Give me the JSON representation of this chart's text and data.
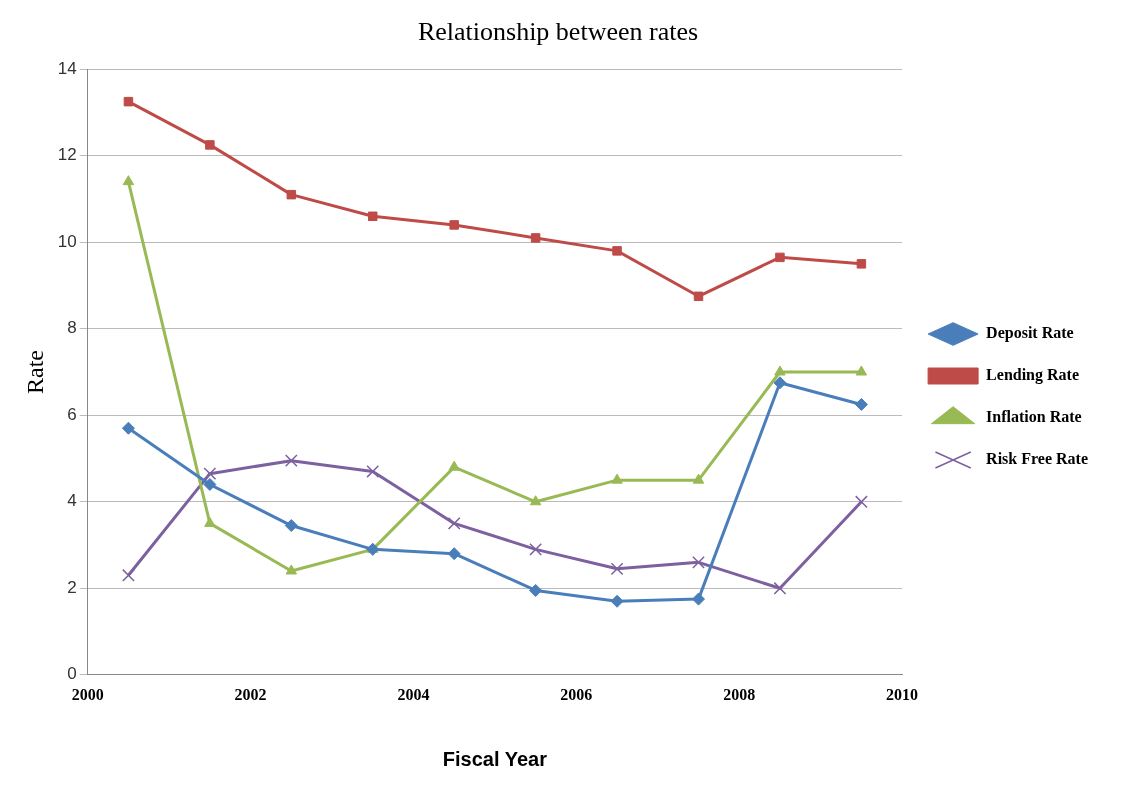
{
  "chart_data": {
    "type": "line",
    "title": "Relationship between rates",
    "xlabel": "Fiscal Year",
    "ylabel": "Rate",
    "x": [
      2000.5,
      2001.5,
      2002.5,
      2003.5,
      2004.5,
      2005.5,
      2006.5,
      2007.5,
      2008.5,
      2009.5
    ],
    "xlim": [
      2000,
      2010
    ],
    "xticks": [
      2000,
      2002,
      2004,
      2006,
      2008,
      2010
    ],
    "ylim": [
      0,
      14
    ],
    "yticks": [
      0,
      2,
      4,
      6,
      8,
      10,
      12,
      14
    ],
    "grid": "y",
    "legend": "right",
    "series": [
      {
        "name": "Deposit Rate",
        "color": "#4a7ebb",
        "marker": "diamond",
        "values": [
          5.7,
          4.4,
          3.45,
          2.9,
          2.8,
          1.95,
          1.7,
          1.75,
          6.75,
          6.25
        ]
      },
      {
        "name": "Lending Rate",
        "color": "#be4b48",
        "marker": "square",
        "values": [
          13.25,
          12.25,
          11.1,
          10.6,
          10.4,
          10.1,
          9.8,
          8.75,
          9.65,
          9.5
        ]
      },
      {
        "name": "Inflation Rate",
        "color": "#98b954",
        "marker": "triangle",
        "values": [
          11.4,
          3.5,
          2.4,
          2.9,
          4.8,
          4.0,
          4.5,
          4.5,
          7.0,
          7.0
        ]
      },
      {
        "name": "Risk Free Rate",
        "color": "#7d60a0",
        "marker": "cross",
        "values": [
          2.3,
          4.65,
          4.95,
          4.7,
          3.5,
          2.9,
          2.45,
          2.6,
          2.0,
          4.0
        ]
      }
    ]
  }
}
